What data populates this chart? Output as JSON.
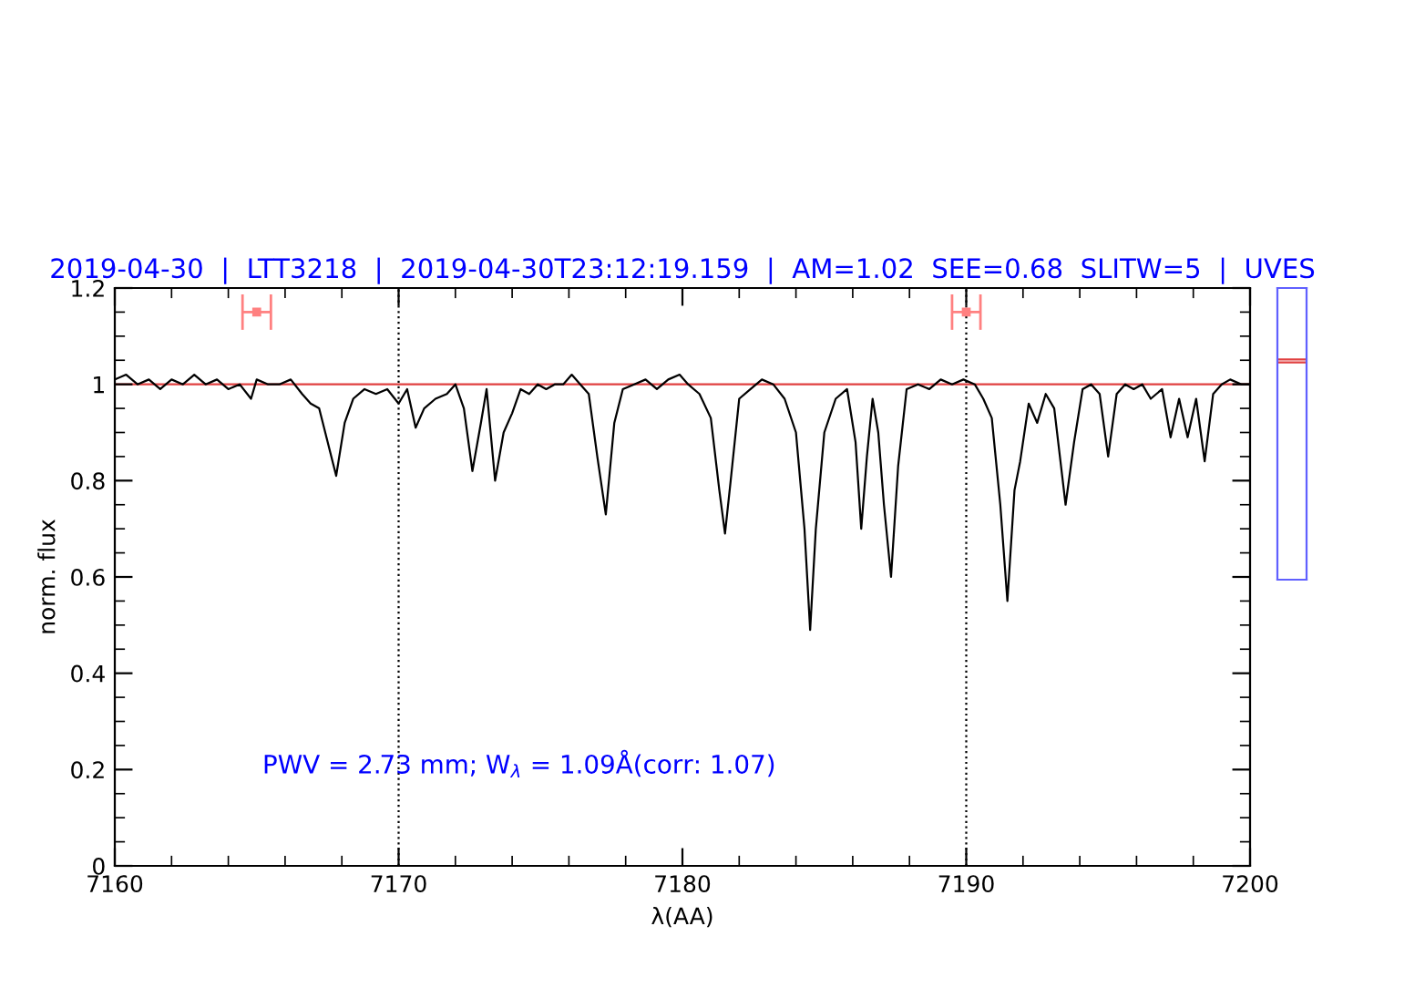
{
  "chart_data": {
    "type": "line",
    "title": "2019-04-30  |  LTT3218  |  2019-04-30T23:12:19.159  |  AM=1.02  SEE=0.68  SLITW=5  |  UVES",
    "xlabel": "λ(AA)",
    "ylabel": "norm. flux",
    "xlim": [
      7160,
      7200
    ],
    "xticks": [
      7160,
      7170,
      7180,
      7190,
      7200
    ],
    "ylim": [
      0,
      1.2
    ],
    "yticks": [
      0,
      0.2,
      0.4,
      0.6,
      0.8,
      1,
      1.2
    ],
    "grid": false,
    "legend": false,
    "marker": "none",
    "line_style": "solid",
    "annotations": [
      "PWV = 2.73 mm; W$_{λ}$ = 1.09Å(corr: 1.07)"
    ],
    "ref_lines": [
      {
        "axis": "y",
        "value": 1,
        "color": "#e04040",
        "line_style": "solid"
      },
      {
        "axis": "x",
        "value": 7170,
        "color": "#000000",
        "line_style": "dotted"
      },
      {
        "axis": "x",
        "value": 7190,
        "color": "#000000",
        "line_style": "dotted"
      }
    ],
    "series": [
      {
        "color": "#000000",
        "x": [
          7160.0,
          7160.4,
          7160.8,
          7161.2,
          7161.6,
          7162.0,
          7162.4,
          7162.8,
          7163.2,
          7163.6,
          7164.0,
          7164.4,
          7164.8,
          7165.0,
          7165.4,
          7165.8,
          7166.2,
          7166.6,
          7166.9,
          7167.2,
          7167.5,
          7167.8,
          7168.1,
          7168.4,
          7168.8,
          7169.2,
          7169.6,
          7170.0,
          7170.3,
          7170.6,
          7170.9,
          7171.3,
          7171.7,
          7172.0,
          7172.3,
          7172.6,
          7172.9,
          7173.1,
          7173.4,
          7173.7,
          7174.0,
          7174.3,
          7174.6,
          7174.9,
          7175.2,
          7175.5,
          7175.8,
          7176.1,
          7176.4,
          7176.7,
          7177.0,
          7177.3,
          7177.6,
          7177.9,
          7178.3,
          7178.7,
          7179.1,
          7179.5,
          7179.9,
          7180.2,
          7180.6,
          7181.0,
          7181.3,
          7181.5,
          7181.7,
          7182.0,
          7182.4,
          7182.8,
          7183.2,
          7183.6,
          7184.0,
          7184.3,
          7184.5,
          7184.7,
          7185.0,
          7185.4,
          7185.8,
          7186.1,
          7186.3,
          7186.5,
          7186.7,
          7186.9,
          7187.1,
          7187.35,
          7187.6,
          7187.9,
          7188.3,
          7188.7,
          7189.1,
          7189.5,
          7189.9,
          7190.3,
          7190.6,
          7190.9,
          7191.2,
          7191.45,
          7191.7,
          7191.9,
          7192.2,
          7192.5,
          7192.8,
          7193.1,
          7193.5,
          7193.8,
          7194.1,
          7194.4,
          7194.7,
          7195.0,
          7195.3,
          7195.6,
          7195.9,
          7196.2,
          7196.5,
          7196.9,
          7197.2,
          7197.5,
          7197.8,
          7198.1,
          7198.4,
          7198.7,
          7199.0,
          7199.3,
          7199.7,
          7200.0
        ],
        "values": [
          1.01,
          1.02,
          1.0,
          1.01,
          0.99,
          1.01,
          1.0,
          1.02,
          1.0,
          1.01,
          0.99,
          1.0,
          0.97,
          1.01,
          1.0,
          1.0,
          1.01,
          0.98,
          0.96,
          0.95,
          0.88,
          0.81,
          0.92,
          0.97,
          0.99,
          0.98,
          0.99,
          0.96,
          0.99,
          0.91,
          0.95,
          0.97,
          0.98,
          1.0,
          0.95,
          0.82,
          0.92,
          0.99,
          0.8,
          0.9,
          0.94,
          0.99,
          0.98,
          1.0,
          0.99,
          1.0,
          1.0,
          1.02,
          1.0,
          0.98,
          0.85,
          0.73,
          0.92,
          0.99,
          1.0,
          1.01,
          0.99,
          1.01,
          1.02,
          1.0,
          0.98,
          0.93,
          0.78,
          0.69,
          0.8,
          0.97,
          0.99,
          1.01,
          1.0,
          0.97,
          0.9,
          0.7,
          0.49,
          0.7,
          0.9,
          0.97,
          0.99,
          0.88,
          0.7,
          0.85,
          0.97,
          0.9,
          0.75,
          0.6,
          0.83,
          0.99,
          1.0,
          0.99,
          1.01,
          1.0,
          1.01,
          1.0,
          0.97,
          0.93,
          0.75,
          0.55,
          0.78,
          0.84,
          0.96,
          0.92,
          0.98,
          0.95,
          0.75,
          0.88,
          0.99,
          1.0,
          0.98,
          0.85,
          0.98,
          1.0,
          0.99,
          1.0,
          0.97,
          0.99,
          0.89,
          0.97,
          0.89,
          0.97,
          0.84,
          0.98,
          1.0,
          1.01,
          1.0,
          1.0
        ]
      },
      {
        "type": "scatter",
        "color": "#ff8080",
        "x": [
          7165,
          7190
        ],
        "values": [
          1.15,
          1.15
        ],
        "xerrors": [
          0.5,
          0.5
        ],
        "marker": "square"
      }
    ]
  }
}
